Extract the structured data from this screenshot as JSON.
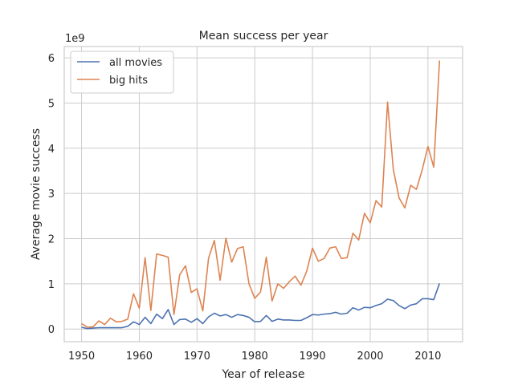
{
  "chart_data": {
    "type": "line",
    "title": "Mean success per year",
    "xlabel": "Year of release",
    "ylabel": "Average movie success",
    "y_multiplier_label": "1e9",
    "xlim": [
      1947,
      2016
    ],
    "ylim": [
      -0.28,
      6.25
    ],
    "xticks": [
      1950,
      1960,
      1970,
      1980,
      1990,
      2000,
      2010
    ],
    "yticks": [
      0,
      1,
      2,
      3,
      4,
      5,
      6
    ],
    "grid": true,
    "legend_position": "top-left",
    "x": [
      1950,
      1951,
      1952,
      1953,
      1954,
      1955,
      1956,
      1957,
      1958,
      1959,
      1960,
      1961,
      1962,
      1963,
      1964,
      1965,
      1966,
      1967,
      1968,
      1969,
      1970,
      1971,
      1972,
      1973,
      1974,
      1975,
      1976,
      1977,
      1978,
      1979,
      1980,
      1981,
      1982,
      1983,
      1984,
      1985,
      1986,
      1987,
      1988,
      1989,
      1990,
      1991,
      1992,
      1993,
      1994,
      1995,
      1996,
      1997,
      1998,
      1999,
      2000,
      2001,
      2002,
      2003,
      2004,
      2005,
      2006,
      2007,
      2008,
      2009,
      2010,
      2011,
      2012
    ],
    "series": [
      {
        "name": "all movies",
        "color": "#4c72b0",
        "values": [
          0.04,
          0.01,
          0.02,
          0.03,
          0.03,
          0.03,
          0.03,
          0.03,
          0.06,
          0.16,
          0.1,
          0.26,
          0.12,
          0.33,
          0.23,
          0.43,
          0.1,
          0.21,
          0.22,
          0.15,
          0.23,
          0.12,
          0.27,
          0.35,
          0.29,
          0.32,
          0.26,
          0.32,
          0.3,
          0.26,
          0.16,
          0.17,
          0.3,
          0.17,
          0.22,
          0.2,
          0.2,
          0.19,
          0.19,
          0.25,
          0.32,
          0.31,
          0.33,
          0.34,
          0.37,
          0.33,
          0.35,
          0.47,
          0.42,
          0.48,
          0.47,
          0.52,
          0.56,
          0.66,
          0.63,
          0.52,
          0.45,
          0.53,
          0.56,
          0.67,
          0.67,
          0.65,
          1.01
        ]
      },
      {
        "name": "big hits",
        "color": "#dd8452",
        "values": [
          0.12,
          0.04,
          0.05,
          0.18,
          0.1,
          0.24,
          0.16,
          0.17,
          0.22,
          0.78,
          0.46,
          1.58,
          0.41,
          1.66,
          1.63,
          1.59,
          0.32,
          1.2,
          1.4,
          0.81,
          0.89,
          0.4,
          1.57,
          1.96,
          1.08,
          2.01,
          1.48,
          1.78,
          1.82,
          1.0,
          0.68,
          0.82,
          1.59,
          0.62,
          1.0,
          0.9,
          1.05,
          1.17,
          0.97,
          1.28,
          1.79,
          1.5,
          1.56,
          1.79,
          1.82,
          1.56,
          1.58,
          2.12,
          1.97,
          2.56,
          2.35,
          2.84,
          2.7,
          5.02,
          3.53,
          2.9,
          2.68,
          3.18,
          3.09,
          3.52,
          4.04,
          3.58,
          5.94
        ]
      }
    ]
  }
}
